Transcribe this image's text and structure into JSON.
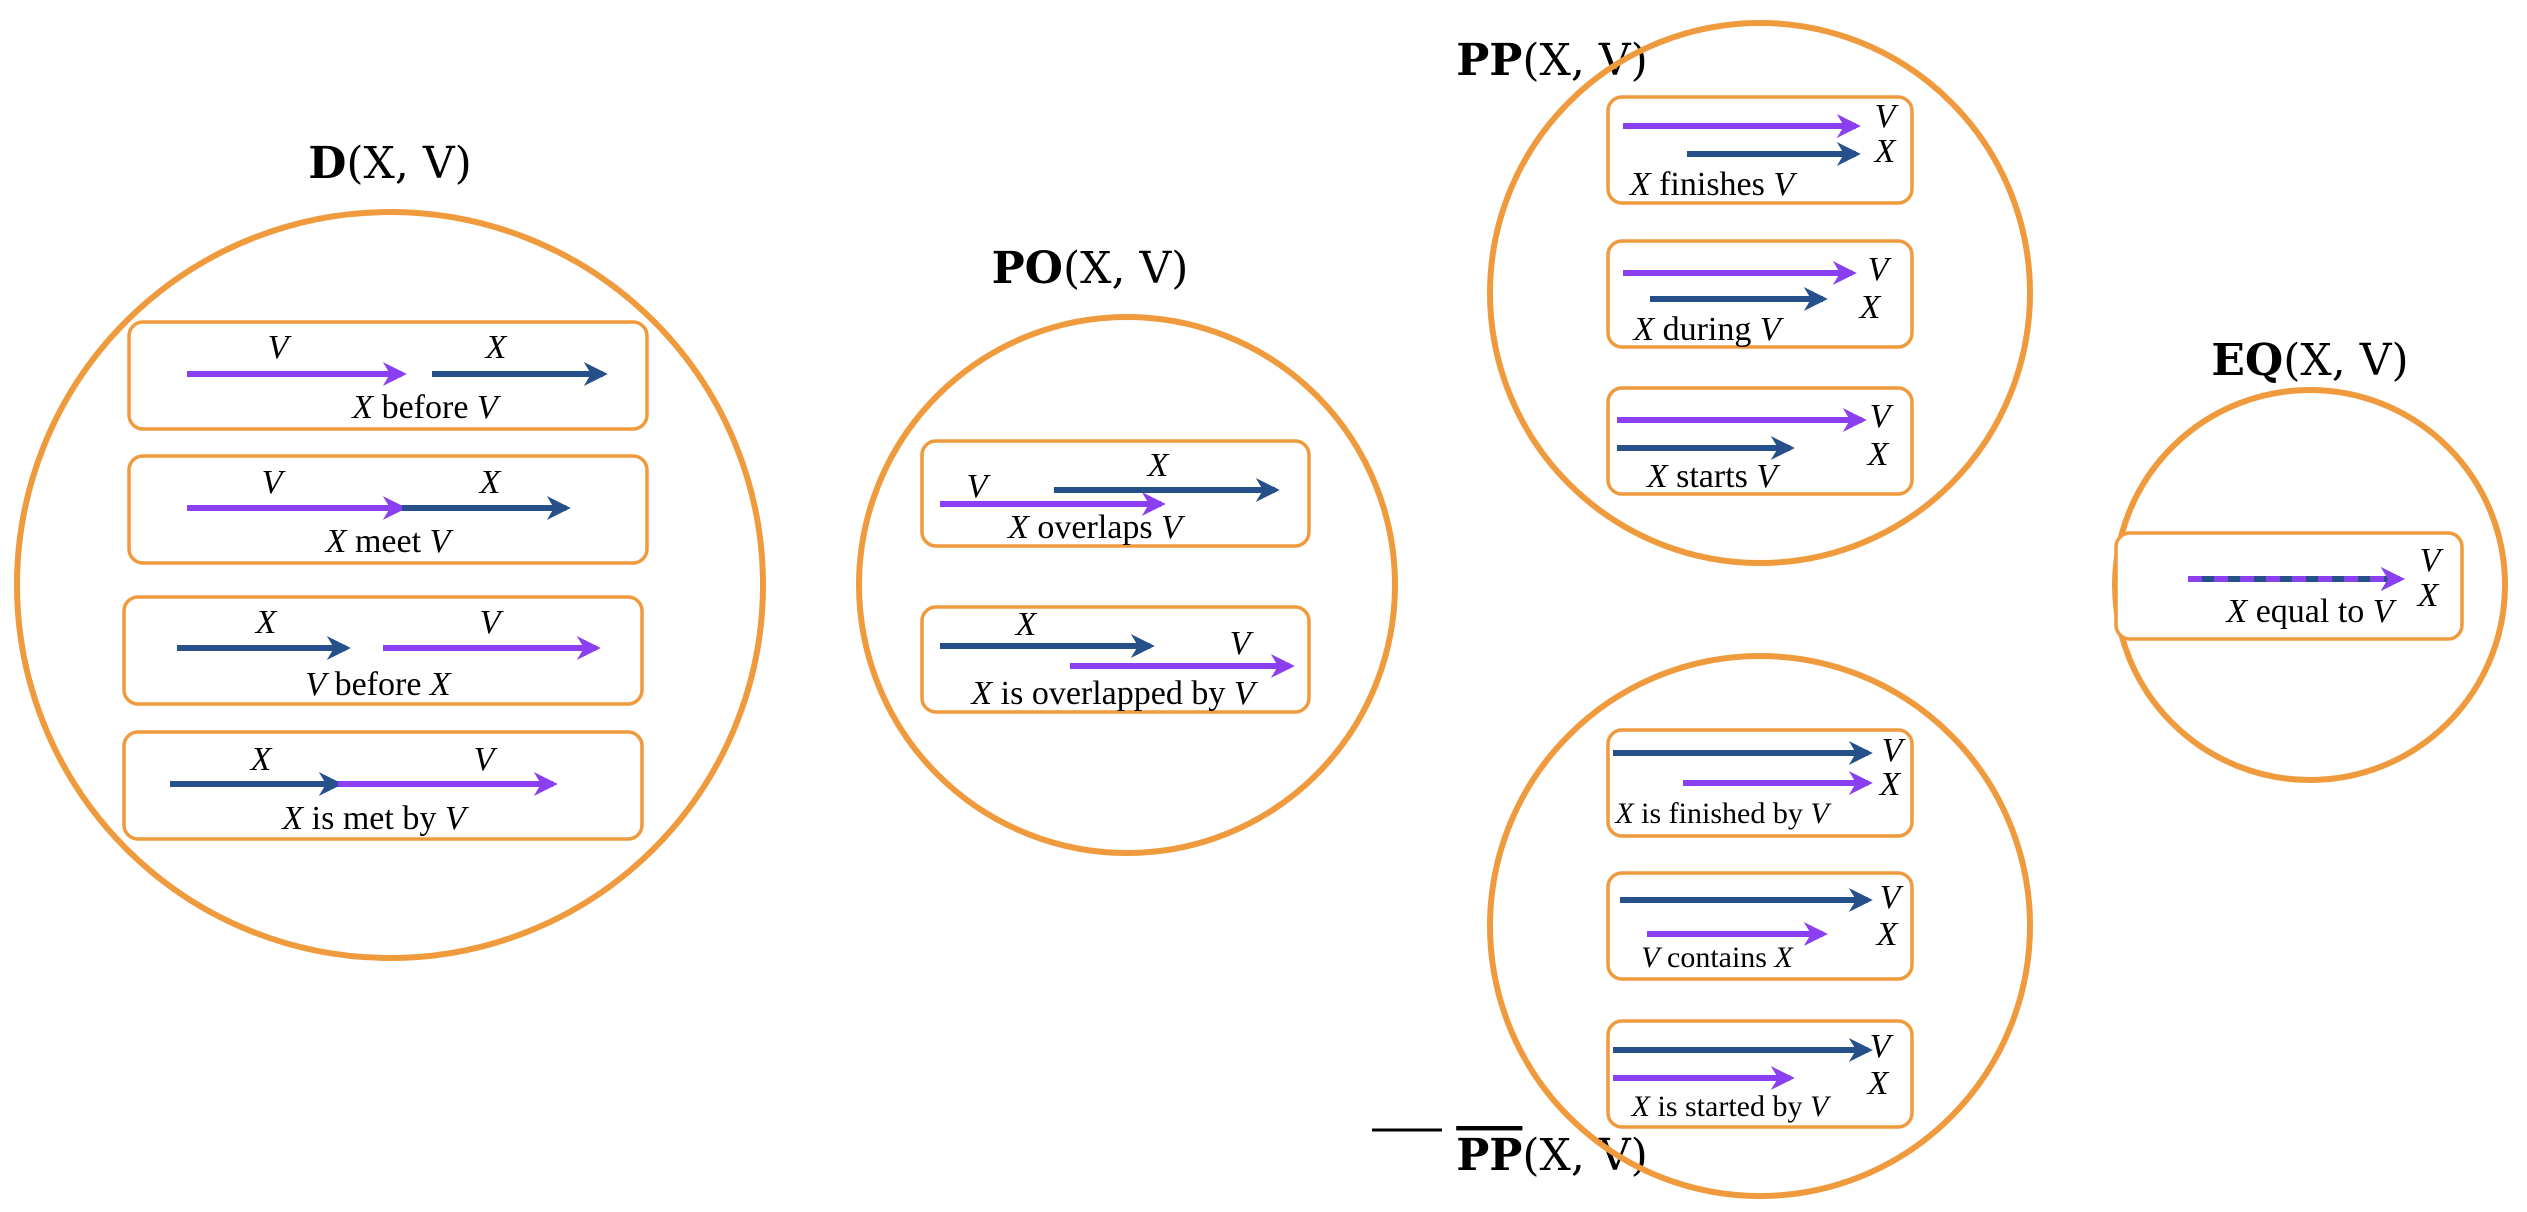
{
  "colors": {
    "circle_outline": "#ef9a3c",
    "box_outline": "#ef9a3c",
    "V_arrow": "#8a3ff0",
    "X_arrow": "#25508a"
  },
  "var_X": "X",
  "var_V": "V",
  "groups": {
    "D": {
      "title_bold": "D",
      "title_args": "(X, V)",
      "relations": [
        {
          "caption_var": "X",
          "caption_text": " before ",
          "caption_var2": "V"
        },
        {
          "caption_var": "X",
          "caption_text": " meet ",
          "caption_var2": "V"
        },
        {
          "caption_var": "V",
          "caption_text": " before ",
          "caption_var2": "X"
        },
        {
          "caption_var": "X",
          "caption_text": " is met by ",
          "caption_var2": "V"
        }
      ]
    },
    "PO": {
      "title_bold": "PO",
      "title_args": "(X, V)",
      "relations": [
        {
          "caption_var": "X",
          "caption_text": " overlaps ",
          "caption_var2": "V"
        },
        {
          "caption_var": "X",
          "caption_text": " is overlapped by ",
          "caption_var2": "V"
        }
      ]
    },
    "PP": {
      "title_bold": "PP",
      "title_args": "(X, V)",
      "relations": [
        {
          "caption_var": "X",
          "caption_text": " finishes ",
          "caption_var2": "V"
        },
        {
          "caption_var": "X",
          "caption_text": " during ",
          "caption_var2": "V"
        },
        {
          "caption_var": "X",
          "caption_text": " starts ",
          "caption_var2": "V"
        }
      ]
    },
    "PPi": {
      "title_bold": "PP",
      "title_args": "(X, V)",
      "overline": true,
      "relations": [
        {
          "caption_var": "X",
          "caption_text": " is finished by ",
          "caption_var2": "V"
        },
        {
          "caption_var": "V",
          "caption_text": " contains ",
          "caption_var2": "X"
        },
        {
          "caption_var": "X",
          "caption_text": " is started by ",
          "caption_var2": "V"
        }
      ]
    },
    "EQ": {
      "title_bold": "EQ",
      "title_args": "(X, V)",
      "relations": [
        {
          "caption_var": "X",
          "caption_text": " equal to ",
          "caption_var2": "V"
        }
      ]
    }
  }
}
